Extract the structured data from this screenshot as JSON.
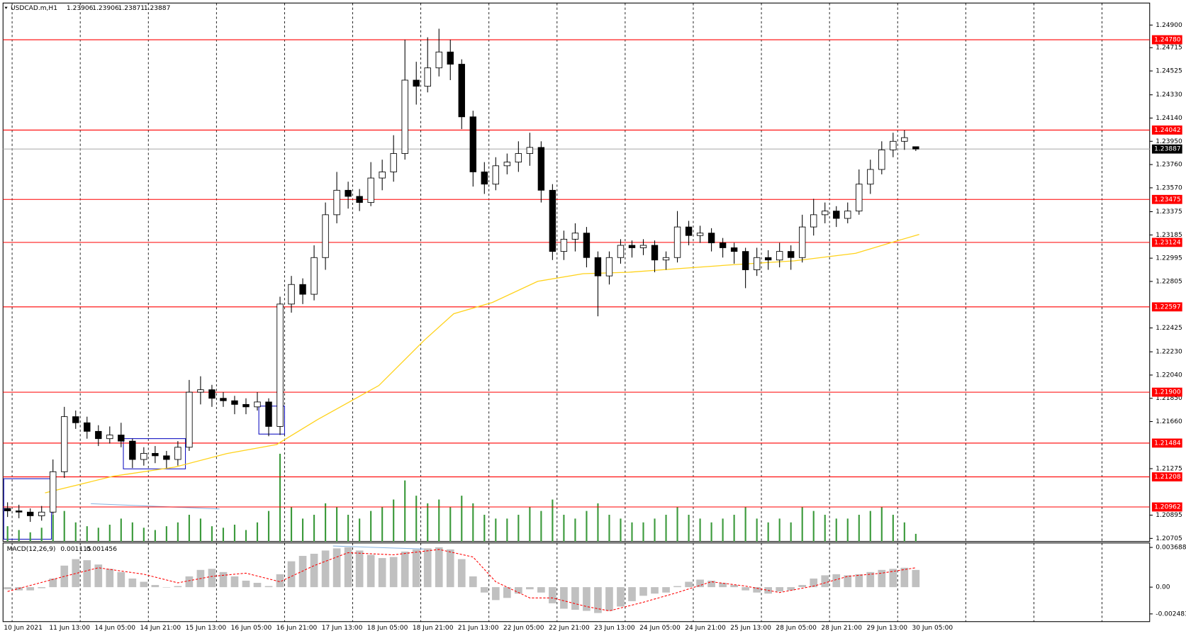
{
  "chart_data": {
    "type": "candlestick",
    "title": "USDCAD.m,H1",
    "header_values": [
      1.23906,
      1.23906,
      1.23871,
      1.23887
    ],
    "candles": [
      [
        1.2095,
        1.21,
        1.2088,
        1.2093
      ],
      [
        1.2093,
        1.2098,
        1.2087,
        1.2092
      ],
      [
        1.2092,
        1.2095,
        1.2084,
        1.2089
      ],
      [
        1.2089,
        1.2097,
        1.2085,
        1.2092
      ],
      [
        1.2092,
        1.2135,
        1.209,
        1.2125
      ],
      [
        1.2125,
        1.2178,
        1.212,
        1.217
      ],
      [
        1.217,
        1.2175,
        1.216,
        1.2165
      ],
      [
        1.2165,
        1.217,
        1.2152,
        1.2158
      ],
      [
        1.2158,
        1.2163,
        1.2146,
        1.2152
      ],
      [
        1.2152,
        1.2162,
        1.2148,
        1.2155
      ],
      [
        1.2155,
        1.2165,
        1.2145,
        1.215
      ],
      [
        1.215,
        1.2152,
        1.2128,
        1.2135
      ],
      [
        1.2135,
        1.2145,
        1.213,
        1.214
      ],
      [
        1.214,
        1.2146,
        1.2132,
        1.2138
      ],
      [
        1.2138,
        1.2142,
        1.2128,
        1.2135
      ],
      [
        1.2135,
        1.215,
        1.213,
        1.2145
      ],
      [
        1.2145,
        1.22,
        1.2142,
        1.219
      ],
      [
        1.219,
        1.2203,
        1.218,
        1.2192
      ],
      [
        1.2192,
        1.2196,
        1.2178,
        1.2185
      ],
      [
        1.2185,
        1.219,
        1.2178,
        1.2183
      ],
      [
        1.2183,
        1.2187,
        1.2172,
        1.218
      ],
      [
        1.218,
        1.2185,
        1.2172,
        1.2178
      ],
      [
        1.2178,
        1.219,
        1.2175,
        1.2182
      ],
      [
        1.2182,
        1.2185,
        1.2154,
        1.2162
      ],
      [
        1.2162,
        1.2268,
        1.2155,
        1.2262
      ],
      [
        1.2262,
        1.2285,
        1.2255,
        1.2278
      ],
      [
        1.2278,
        1.2283,
        1.2262,
        1.227
      ],
      [
        1.227,
        1.231,
        1.2265,
        1.23
      ],
      [
        1.23,
        1.2345,
        1.229,
        1.2335
      ],
      [
        1.2335,
        1.237,
        1.2328,
        1.2355
      ],
      [
        1.2355,
        1.2362,
        1.234,
        1.235
      ],
      [
        1.235,
        1.2356,
        1.2338,
        1.2345
      ],
      [
        1.2345,
        1.2378,
        1.2342,
        1.2365
      ],
      [
        1.2365,
        1.238,
        1.2355,
        1.237
      ],
      [
        1.237,
        1.24,
        1.2362,
        1.2385
      ],
      [
        1.2385,
        1.2478,
        1.238,
        1.2445
      ],
      [
        1.2445,
        1.246,
        1.2425,
        1.244
      ],
      [
        1.244,
        1.248,
        1.2435,
        1.2455
      ],
      [
        1.2455,
        1.2487,
        1.2448,
        1.2468
      ],
      [
        1.2468,
        1.2478,
        1.2445,
        1.2458
      ],
      [
        1.2458,
        1.2462,
        1.2405,
        1.2415
      ],
      [
        1.2415,
        1.242,
        1.2358,
        1.237
      ],
      [
        1.237,
        1.2378,
        1.2352,
        1.236
      ],
      [
        1.236,
        1.2382,
        1.2355,
        1.2375
      ],
      [
        1.2375,
        1.2385,
        1.2368,
        1.2378
      ],
      [
        1.2378,
        1.2395,
        1.237,
        1.2385
      ],
      [
        1.2385,
        1.2402,
        1.2375,
        1.239
      ],
      [
        1.239,
        1.2395,
        1.2345,
        1.2355
      ],
      [
        1.2355,
        1.236,
        1.2298,
        1.2305
      ],
      [
        1.2305,
        1.2322,
        1.2298,
        1.2315
      ],
      [
        1.2315,
        1.2328,
        1.2305,
        1.232
      ],
      [
        1.232,
        1.2325,
        1.2292,
        1.23
      ],
      [
        1.23,
        1.2305,
        1.2252,
        1.2285
      ],
      [
        1.2285,
        1.2305,
        1.2278,
        1.23
      ],
      [
        1.23,
        1.2315,
        1.2295,
        1.231
      ],
      [
        1.231,
        1.2314,
        1.23,
        1.2308
      ],
      [
        1.2308,
        1.2315,
        1.2302,
        1.231
      ],
      [
        1.231,
        1.2314,
        1.2288,
        1.2298
      ],
      [
        1.2298,
        1.2305,
        1.229,
        1.23
      ],
      [
        1.23,
        1.2338,
        1.2296,
        1.2325
      ],
      [
        1.2325,
        1.233,
        1.231,
        1.2318
      ],
      [
        1.2318,
        1.2326,
        1.2312,
        1.232
      ],
      [
        1.232,
        1.2324,
        1.2305,
        1.2312
      ],
      [
        1.2312,
        1.2316,
        1.23,
        1.2308
      ],
      [
        1.2308,
        1.2312,
        1.2295,
        1.2305
      ],
      [
        1.2305,
        1.2308,
        1.2275,
        1.229
      ],
      [
        1.229,
        1.2308,
        1.2285,
        1.23
      ],
      [
        1.23,
        1.2306,
        1.229,
        1.2298
      ],
      [
        1.2298,
        1.2312,
        1.2292,
        1.2305
      ],
      [
        1.2305,
        1.231,
        1.229,
        1.23
      ],
      [
        1.23,
        1.2335,
        1.2296,
        1.2325
      ],
      [
        1.2325,
        1.2348,
        1.2318,
        1.2335
      ],
      [
        1.2335,
        1.2345,
        1.2328,
        1.2338
      ],
      [
        1.2338,
        1.2342,
        1.2325,
        1.2332
      ],
      [
        1.2332,
        1.2345,
        1.2328,
        1.2338
      ],
      [
        1.2338,
        1.2372,
        1.2335,
        1.236
      ],
      [
        1.236,
        1.238,
        1.2352,
        1.2372
      ],
      [
        1.2372,
        1.2395,
        1.2368,
        1.2388
      ],
      [
        1.2388,
        1.2402,
        1.2382,
        1.2395
      ],
      [
        1.2395,
        1.2404,
        1.2388,
        1.2398
      ],
      [
        1.23906,
        1.23906,
        1.23871,
        1.23887
      ]
    ],
    "volumes": [
      20,
      15,
      12,
      18,
      35,
      40,
      25,
      20,
      18,
      22,
      30,
      25,
      18,
      15,
      20,
      25,
      35,
      30,
      20,
      18,
      22,
      15,
      25,
      40,
      115,
      45,
      30,
      35,
      50,
      45,
      35,
      30,
      40,
      45,
      55,
      80,
      60,
      50,
      55,
      45,
      60,
      50,
      35,
      30,
      30,
      35,
      45,
      40,
      55,
      35,
      30,
      40,
      50,
      35,
      30,
      25,
      25,
      30,
      35,
      45,
      35,
      30,
      25,
      30,
      35,
      45,
      30,
      25,
      30,
      25,
      45,
      40,
      35,
      30,
      30,
      35,
      40,
      45,
      35,
      25,
      10
    ],
    "volume_color": "#3c9a3c",
    "up_color": "#ffffff",
    "down_color": "#000000",
    "ylim": [
      1.2068,
      1.2508
    ],
    "yticks": [
      {
        "value": 1.249,
        "label": "1.24900"
      },
      1.24715,
      1.24525,
      {
        "value": 1.2433,
        "label": "1.24330"
      },
      {
        "value": 1.2414,
        "label": "1.24140"
      },
      {
        "value": 1.2395,
        "label": "1.23950"
      },
      {
        "value": 1.2376,
        "label": "1.23760"
      },
      {
        "value": 1.2357,
        "label": "1.23570"
      },
      1.23375,
      1.23185,
      1.22995,
      1.22805,
      1.22425,
      {
        "value": 1.2223,
        "label": "1.22230"
      },
      {
        "value": 1.2204,
        "label": "1.22040"
      },
      {
        "value": 1.2185,
        "label": "1.21850"
      },
      {
        "value": 1.2166,
        "label": "1.21660"
      },
      1.21275,
      1.20895,
      1.20705
    ],
    "levels": [
      {
        "value": 1.2478,
        "label": "1.24780"
      },
      1.24042,
      1.23475,
      1.23124,
      1.22597,
      {
        "value": 1.219,
        "label": "1.21900"
      },
      1.21484,
      1.21208,
      1.20962
    ],
    "level_color": "#ff0000",
    "current_price": 1.23887,
    "ma": {
      "color": "#ffd21a",
      "x": [
        3.3,
        9.3,
        14.7,
        19.3,
        23.7,
        27.3,
        32.7,
        36.7,
        39.3,
        42.7,
        46.7,
        50.7,
        54.7,
        59.3,
        64,
        69.3,
        74.7,
        78,
        80.3
      ],
      "values": [
        1.21077,
        1.21213,
        1.21287,
        1.21398,
        1.21472,
        1.21676,
        1.21954,
        1.22324,
        1.22541,
        1.22633,
        1.22806,
        1.22868,
        1.2288,
        1.22911,
        1.22942,
        1.22973,
        1.23035,
        1.23127,
        1.23189
      ]
    },
    "time_labels": [
      "10 Jun 2021",
      "11 Jun 13:00",
      "14 Jun 05:00",
      "14 Jun 21:00",
      "15 Jun 13:00",
      "16 Jun 05:00",
      "16 Jun 21:00",
      "17 Jun 13:00",
      "18 Jun 05:00",
      "18 Jun 21:00",
      "21 Jun 13:00",
      "22 Jun 05:00",
      "22 Jun 21:00",
      "23 Jun 13:00",
      "24 Jun 05:00",
      "24 Jun 21:00",
      "25 Jun 13:00",
      "28 Jun 05:00",
      "28 Jun 21:00",
      "29 Jun 13:00",
      "30 Jun 05:00"
    ],
    "macd": {
      "title": "MACD(12,26,9)",
      "header_values": [
        0.001115,
        0.001456
      ],
      "color": "#c0c0c0",
      "signal_color": "#ff0000",
      "values": [
        -0.0002,
        -0.0003,
        -0.0003,
        -0.0001,
        0.0008,
        0.002,
        0.0026,
        0.0025,
        0.0021,
        0.0017,
        0.0014,
        0.0008,
        0.0005,
        0.0002,
        0,
        0.0001,
        0.001,
        0.0016,
        0.0017,
        0.0014,
        0.001,
        0.0006,
        0.0004,
        0.0001,
        0.0012,
        0.0024,
        0.0029,
        0.0031,
        0.0034,
        0.0036,
        0.0037,
        0.0034,
        0.003,
        0.0027,
        0.0028,
        0.0033,
        0.0035,
        0.0036,
        0.0037,
        0.0035,
        0.0026,
        0.001,
        -0.0005,
        -0.0012,
        -0.001,
        -0.0006,
        -0.0002,
        -0.0005,
        -0.0015,
        -0.002,
        -0.0021,
        -0.0022,
        -0.0024,
        -0.0022,
        -0.0018,
        -0.0013,
        -0.0008,
        -0.0006,
        -0.0005,
        0.0001,
        0.0005,
        0.0007,
        0.0006,
        0.0004,
        0.0002,
        -0.0003,
        -0.0005,
        -0.0006,
        -0.0004,
        -0.0003,
        0.0002,
        0.0008,
        0.0011,
        0.0012,
        0.0011,
        0.0012,
        0.0014,
        0.0016,
        0.0017,
        0.0018,
        0.0016
      ],
      "signal": {
        "x": [
          0,
          5,
          8,
          12,
          15,
          18,
          21,
          24,
          27,
          30,
          34,
          38,
          41,
          43,
          46,
          48,
          51,
          53,
          56,
          59,
          62,
          65,
          68,
          71,
          74,
          77,
          80
        ],
        "values": [
          -0.0004,
          0.001,
          0.0018,
          0.0012,
          0.0004,
          0.001,
          0.0013,
          0.0005,
          0.002,
          0.0032,
          0.003,
          0.0035,
          0.0028,
          0.0005,
          -0.001,
          -0.001,
          -0.0018,
          -0.0022,
          -0.0014,
          -0.0005,
          0.0005,
          0.0001,
          -0.0005,
          0.0001,
          0.001,
          0.0013,
          0.0018
        ]
      },
      "ylim": [
        -0.0032,
        0.0041
      ],
      "yticks": [
        0.003688,
        {
          "value": 0,
          "label": "0.00"
        },
        -0.002483
      ]
    }
  }
}
